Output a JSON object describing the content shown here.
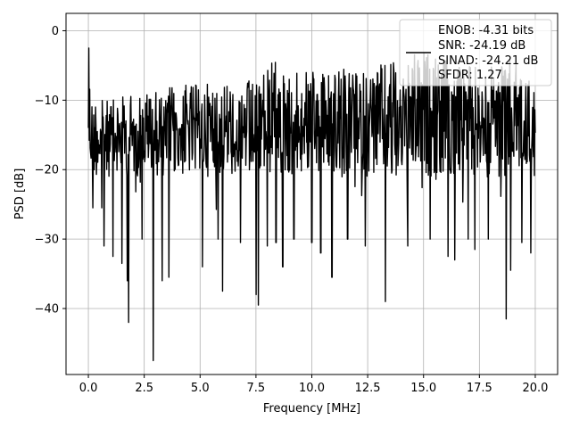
{
  "chart_data": {
    "type": "line",
    "title": "",
    "xlabel": "Frequency [MHz]",
    "ylabel": "PSD [dB]",
    "xlim": [
      -1.0,
      21.0
    ],
    "ylim": [
      -49.5,
      2.5
    ],
    "x_ticks": [
      0.0,
      2.5,
      5.0,
      7.5,
      10.0,
      12.5,
      15.0,
      17.5,
      20.0
    ],
    "x_tick_labels": [
      "0.0",
      "2.5",
      "5.0",
      "7.5",
      "10.0",
      "12.5",
      "15.0",
      "17.5",
      "20.0"
    ],
    "y_ticks": [
      0,
      -10,
      -20,
      -30,
      -40
    ],
    "y_tick_labels": [
      "0",
      "−10",
      "−20",
      "−30",
      "−40"
    ],
    "grid": true,
    "legend_position": "top-right",
    "line_color": "#000000",
    "legend_lines": [
      "ENOB: -4.31 bits",
      "SNR: -24.19 dB",
      "SINAD: -24.21 dB",
      "SFDR: 1.27"
    ],
    "series": [
      {
        "x_start": 0.0,
        "x_end": 20.0,
        "points": 1000,
        "upper_envelope": [
          [
            0,
            -2.5
          ],
          [
            0.1,
            -8
          ],
          [
            0.5,
            -10
          ],
          [
            1,
            -10
          ],
          [
            2.5,
            -8.5
          ],
          [
            5,
            -7.5
          ],
          [
            7.5,
            -7
          ],
          [
            8.3,
            -4
          ],
          [
            9,
            -6
          ],
          [
            10,
            -6
          ],
          [
            11,
            -5
          ],
          [
            12,
            -6
          ],
          [
            14,
            -4
          ],
          [
            15,
            -3
          ],
          [
            16.5,
            -5
          ],
          [
            17.5,
            -5
          ],
          [
            18,
            -5
          ],
          [
            19,
            -4
          ],
          [
            20,
            -8
          ]
        ],
        "typical_floor": -21,
        "deep_notches": [
          [
            0.2,
            -25.5
          ],
          [
            0.6,
            -25.5
          ],
          [
            0.7,
            -31
          ],
          [
            1.1,
            -32.5
          ],
          [
            1.5,
            -33.5
          ],
          [
            1.75,
            -36
          ],
          [
            1.8,
            -42
          ],
          [
            2.4,
            -30
          ],
          [
            2.9,
            -47.5
          ],
          [
            3.3,
            -36
          ],
          [
            3.6,
            -35.5
          ],
          [
            5.1,
            -34
          ],
          [
            5.8,
            -30
          ],
          [
            6.0,
            -37.5
          ],
          [
            6.8,
            -30.5
          ],
          [
            7.5,
            -38
          ],
          [
            7.6,
            -39.5
          ],
          [
            8.0,
            -31
          ],
          [
            8.4,
            -30.5
          ],
          [
            8.7,
            -34
          ],
          [
            9.2,
            -30
          ],
          [
            10.0,
            -30.5
          ],
          [
            10.4,
            -32
          ],
          [
            10.9,
            -35.5
          ],
          [
            11.6,
            -30
          ],
          [
            12.4,
            -31
          ],
          [
            13.3,
            -39
          ],
          [
            14.3,
            -31
          ],
          [
            15.3,
            -30
          ],
          [
            16.1,
            -32.5
          ],
          [
            16.4,
            -33
          ],
          [
            17.0,
            -30
          ],
          [
            17.3,
            -31.5
          ],
          [
            17.9,
            -30
          ],
          [
            18.7,
            -41.5
          ],
          [
            18.9,
            -34.5
          ],
          [
            19.4,
            -30.5
          ],
          [
            19.8,
            -32
          ]
        ]
      }
    ]
  }
}
